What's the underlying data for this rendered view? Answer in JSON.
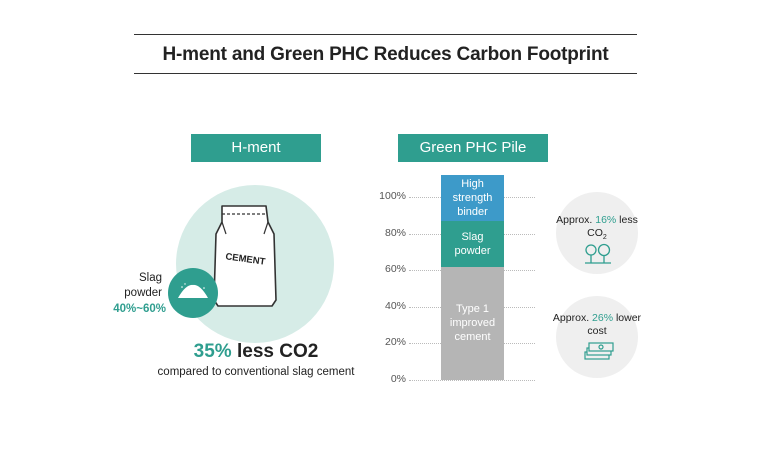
{
  "title": "H-ment and Green PHC Reduces Carbon Footprint",
  "left_panel": {
    "header": "H-ment",
    "bag_label": "CEMENT",
    "slag_label_line1": "Slag",
    "slag_label_line2": "powder",
    "slag_range": "40%~60%",
    "headline_pct": "35%",
    "headline_rest": " less CO2",
    "subtext": "compared to conventional slag cement"
  },
  "right_panel": {
    "header": "Green PHC Pile"
  },
  "chart_data": {
    "type": "bar",
    "orientation": "stacked-vertical",
    "y_ticks": [
      "0%",
      "20%",
      "40%",
      "60%",
      "80%",
      "100%"
    ],
    "ylim": [
      0,
      100
    ],
    "series": [
      {
        "name": "Type 1 improved cement",
        "label_lines": [
          "Type 1",
          "improved",
          "cement"
        ],
        "start": 0,
        "end": 62,
        "color": "#b5b5b5"
      },
      {
        "name": "Slag powder",
        "label_lines": [
          "Slag",
          "powder"
        ],
        "start": 62,
        "end": 87,
        "color": "#2f9e8f"
      },
      {
        "name": "High strength binder",
        "label_lines": [
          "High strength",
          "binder"
        ],
        "start": 87,
        "end": 112,
        "color": "#3d9ac9"
      }
    ]
  },
  "badges": {
    "co2": {
      "prefix": "Approx. ",
      "pct": "16%",
      "suffix": " less",
      "line2": "CO",
      "sub": "2"
    },
    "cost": {
      "prefix": "Approx. ",
      "pct": "26%",
      "suffix": " lower",
      "line2": "cost"
    }
  },
  "colors": {
    "accent": "#2f9e8f",
    "circle_bg": "#d6ece7",
    "binder": "#3d9ac9",
    "cement": "#b5b5b5"
  }
}
